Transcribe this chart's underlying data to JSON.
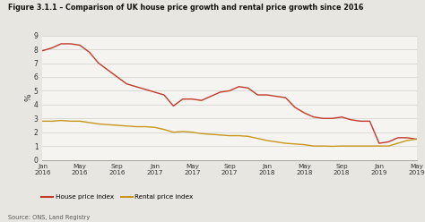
{
  "title": "Figure 3.1.1 – Comparison of UK house price growth and rental price growth since 2016",
  "ylabel": "%",
  "source": "Source: ONS, Land Registry",
  "ylim": [
    0,
    9
  ],
  "yticks": [
    0,
    1,
    2,
    3,
    4,
    5,
    6,
    7,
    8,
    9
  ],
  "bg_color": "#e8e6e0",
  "plot_bg_color": "#f5f4f0",
  "house_color": "#c0392b",
  "rental_color": "#c8961a",
  "legend_house": "House price index",
  "legend_rental": "Rental price index",
  "xtick_labels": [
    "Jan\n2016",
    "May\n2016",
    "Sep\n2016",
    "Jan\n2017",
    "May\n2017",
    "Sep\n2017",
    "Jan\n2018",
    "May\n2018",
    "Sep\n2018",
    "Jan\n2019",
    "May\n2019"
  ],
  "house_x": [
    0,
    1,
    2,
    3,
    4,
    5,
    6,
    7,
    8,
    9,
    10,
    11,
    12,
    13,
    14,
    15,
    16,
    17,
    18,
    19,
    20,
    21,
    22,
    23,
    24,
    25,
    26,
    27,
    28,
    29,
    30,
    31,
    32,
    33,
    34,
    35,
    36,
    37,
    38,
    39,
    40
  ],
  "house_y": [
    7.9,
    8.1,
    8.4,
    8.4,
    8.3,
    7.8,
    7.0,
    6.5,
    6.0,
    5.5,
    5.3,
    5.1,
    4.9,
    4.7,
    3.9,
    4.4,
    4.4,
    4.3,
    4.6,
    4.9,
    5.0,
    5.3,
    5.2,
    4.7,
    4.7,
    4.6,
    4.5,
    3.8,
    3.4,
    3.1,
    3.0,
    3.0,
    3.1,
    2.9,
    2.8,
    2.8,
    1.2,
    1.3,
    1.6,
    1.6,
    1.5
  ],
  "rental_x": [
    0,
    1,
    2,
    3,
    4,
    5,
    6,
    7,
    8,
    9,
    10,
    11,
    12,
    13,
    14,
    15,
    16,
    17,
    18,
    19,
    20,
    21,
    22,
    23,
    24,
    25,
    26,
    27,
    28,
    29,
    30,
    31,
    32,
    33,
    34,
    35,
    36,
    37,
    38,
    39,
    40
  ],
  "rental_y": [
    2.8,
    2.8,
    2.85,
    2.8,
    2.8,
    2.7,
    2.6,
    2.55,
    2.5,
    2.45,
    2.4,
    2.4,
    2.35,
    2.2,
    2.0,
    2.05,
    2.0,
    1.9,
    1.85,
    1.8,
    1.75,
    1.75,
    1.7,
    1.55,
    1.4,
    1.3,
    1.2,
    1.15,
    1.1,
    1.0,
    1.0,
    0.98,
    1.0,
    1.0,
    1.0,
    1.0,
    1.0,
    1.0,
    1.2,
    1.4,
    1.5
  ]
}
